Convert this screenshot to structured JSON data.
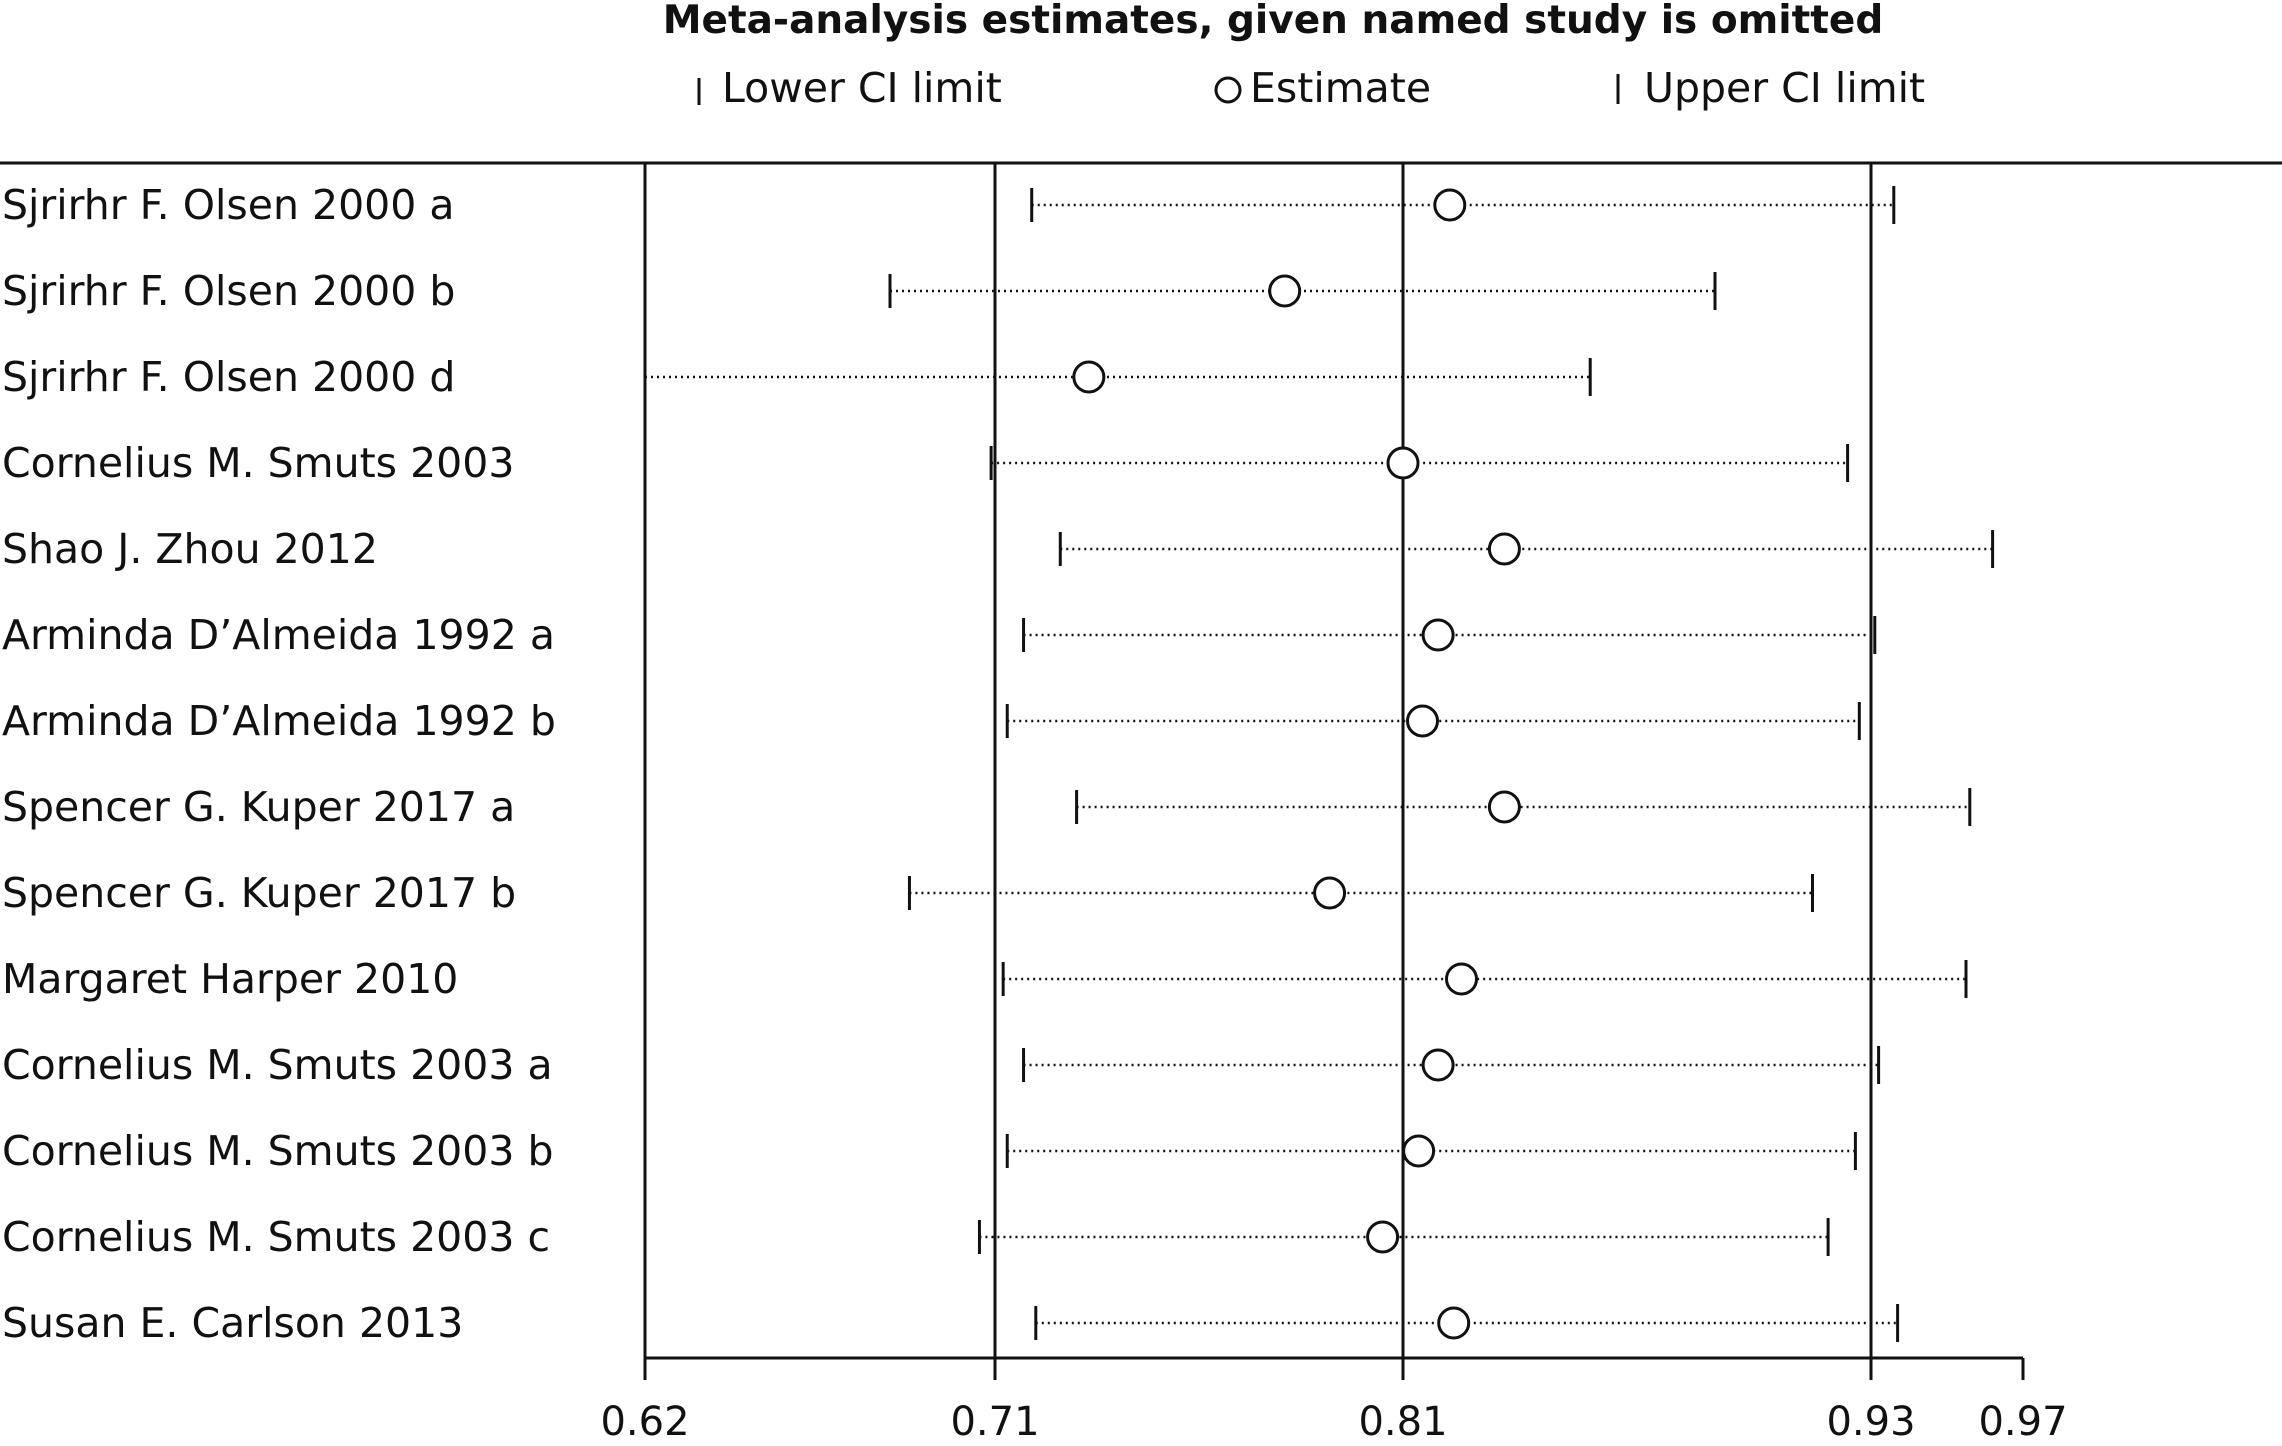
{
  "chart_data": {
    "type": "forest",
    "title": "Meta-analysis estimates, given named study is omitted",
    "legend": {
      "lower": "Lower CI limit",
      "estimate": "Estimate",
      "upper": "Upper CI limit"
    },
    "xticks": [
      0.62,
      0.71,
      0.81,
      0.93,
      0.97
    ],
    "xtick_labels": [
      "0.62",
      "0.71",
      "0.81",
      "0.93",
      "0.97"
    ],
    "xlim": [
      0.62,
      0.97
    ],
    "reference_lines": [
      0.62,
      0.71,
      0.81,
      0.93
    ],
    "studies": [
      {
        "name": "Sjrirhr F. Olsen 2000 a",
        "lower": 0.719,
        "estimate": 0.822,
        "upper": 0.936
      },
      {
        "name": "Sjrirhr F. Olsen 2000 b",
        "lower": 0.683,
        "estimate": 0.781,
        "upper": 0.89
      },
      {
        "name": "Sjrirhr F. Olsen 2000 d",
        "lower": 0.62,
        "estimate": 0.733,
        "upper": 0.858
      },
      {
        "name": "Cornelius M. Smuts 2003",
        "lower": 0.709,
        "estimate": 0.81,
        "upper": 0.924
      },
      {
        "name": "Shao J. Zhou 2012",
        "lower": 0.726,
        "estimate": 0.836,
        "upper": 0.962
      },
      {
        "name": "Arminda D’Almeida 1992 a",
        "lower": 0.717,
        "estimate": 0.819,
        "upper": 0.931
      },
      {
        "name": "Arminda D’Almeida 1992 b",
        "lower": 0.713,
        "estimate": 0.815,
        "upper": 0.927
      },
      {
        "name": "Spencer G. Kuper 2017 a",
        "lower": 0.73,
        "estimate": 0.836,
        "upper": 0.956
      },
      {
        "name": "Spencer G. Kuper 2017 b",
        "lower": 0.688,
        "estimate": 0.792,
        "upper": 0.915
      },
      {
        "name": "Margaret Harper 2010",
        "lower": 0.712,
        "estimate": 0.825,
        "upper": 0.955
      },
      {
        "name": "Cornelius M. Smuts 2003 a",
        "lower": 0.717,
        "estimate": 0.819,
        "upper": 0.932
      },
      {
        "name": "Cornelius M. Smuts 2003 b",
        "lower": 0.713,
        "estimate": 0.814,
        "upper": 0.926
      },
      {
        "name": "Cornelius M. Smuts 2003 c",
        "lower": 0.706,
        "estimate": 0.805,
        "upper": 0.919
      },
      {
        "name": "Susan E. Carlson 2013",
        "lower": 0.72,
        "estimate": 0.823,
        "upper": 0.937
      }
    ]
  }
}
